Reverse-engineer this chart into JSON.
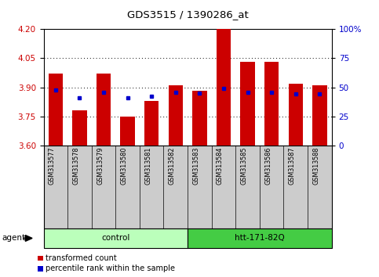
{
  "title": "GDS3515 / 1390286_at",
  "categories": [
    "GSM313577",
    "GSM313578",
    "GSM313579",
    "GSM313580",
    "GSM313581",
    "GSM313582",
    "GSM313583",
    "GSM313584",
    "GSM313585",
    "GSM313586",
    "GSM313587",
    "GSM313588"
  ],
  "bar_values": [
    3.97,
    3.78,
    3.97,
    3.75,
    3.83,
    3.91,
    3.88,
    4.2,
    4.03,
    4.03,
    3.92,
    3.91
  ],
  "percentile_values": [
    3.885,
    3.845,
    3.875,
    3.845,
    3.855,
    3.875,
    3.87,
    3.895,
    3.875,
    3.875,
    3.865,
    3.865
  ],
  "bar_color": "#cc0000",
  "percentile_color": "#0000cc",
  "ymin": 3.6,
  "ymax": 4.2,
  "yticks_left": [
    3.6,
    3.75,
    3.9,
    4.05,
    4.2
  ],
  "yticks_right": [
    0,
    25,
    50,
    75,
    100
  ],
  "groups": [
    {
      "label": "control",
      "start": 0,
      "end": 5,
      "color": "#bbffbb"
    },
    {
      "label": "htt-171-82Q",
      "start": 6,
      "end": 11,
      "color": "#44cc44"
    }
  ],
  "group_row_label": "agent",
  "legend_items": [
    {
      "label": "transformed count",
      "color": "#cc0000"
    },
    {
      "label": "percentile rank within the sample",
      "color": "#0000cc"
    }
  ],
  "bg_color": "#ffffff",
  "tick_label_color_left": "#cc0000",
  "tick_label_color_right": "#0000cc",
  "bar_width": 0.6,
  "sample_bg_color": "#cccccc",
  "dotted_line_color": "#555555"
}
